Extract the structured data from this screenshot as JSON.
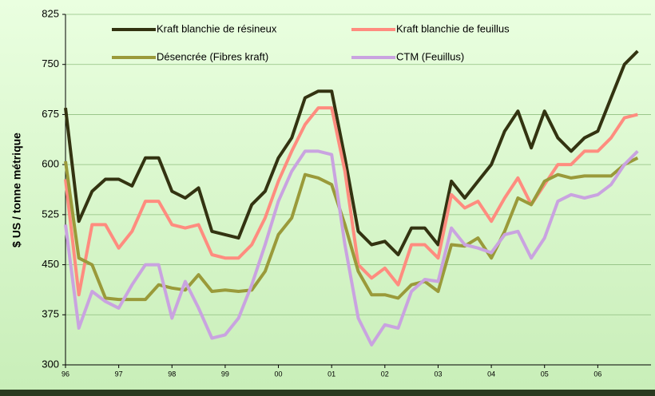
{
  "chart_data": {
    "type": "line",
    "y_label": "$ US / tonne métrique",
    "x": [
      1996,
      1996.25,
      1996.5,
      1996.75,
      1997,
      1997.25,
      1997.5,
      1997.75,
      1998,
      1998.25,
      1998.5,
      1998.75,
      1999,
      1999.25,
      1999.5,
      1999.75,
      2000,
      2000.25,
      2000.5,
      2000.75,
      2001,
      2001.25,
      2001.5,
      2001.75,
      2002,
      2002.25,
      2002.5,
      2002.75,
      2003,
      2003.25,
      2003.5,
      2003.75,
      2004,
      2004.25,
      2004.5,
      2004.75,
      2005,
      2005.25,
      2005.5,
      2005.75,
      2006,
      2006.25,
      2006.5,
      2006.75
    ],
    "series": [
      {
        "name": "Kraft blanchie de résineux",
        "color": "#333311",
        "values": [
          685,
          515,
          560,
          578,
          578,
          568,
          610,
          610,
          560,
          550,
          565,
          500,
          495,
          490,
          540,
          560,
          610,
          640,
          700,
          710,
          710,
          610,
          500,
          480,
          485,
          465,
          505,
          505,
          480,
          575,
          550,
          575,
          600,
          650,
          680,
          625,
          680,
          640,
          620,
          640,
          650,
          700,
          750,
          770
        ]
      },
      {
        "name": "Kraft blanchie de feuillus",
        "color": "#ff8c7f",
        "values": [
          578,
          405,
          510,
          510,
          475,
          500,
          545,
          545,
          510,
          505,
          510,
          465,
          460,
          460,
          480,
          520,
          575,
          620,
          660,
          685,
          685,
          590,
          450,
          430,
          445,
          420,
          480,
          480,
          460,
          555,
          535,
          545,
          515,
          550,
          580,
          540,
          570,
          600,
          600,
          620,
          620,
          640,
          670,
          675
        ]
      },
      {
        "name": "Désencrée (Fibres kraft)",
        "color": "#9a9a3a",
        "values": [
          605,
          460,
          450,
          400,
          398,
          398,
          398,
          420,
          415,
          412,
          435,
          410,
          412,
          410,
          412,
          440,
          495,
          520,
          585,
          580,
          570,
          510,
          440,
          405,
          405,
          400,
          420,
          425,
          410,
          480,
          478,
          490,
          460,
          500,
          550,
          540,
          575,
          585,
          580,
          583,
          583,
          583,
          600,
          610
        ]
      },
      {
        "name": "CTM (Feuillus)",
        "color": "#c9a3e0",
        "values": [
          510,
          355,
          410,
          395,
          385,
          420,
          450,
          450,
          370,
          425,
          385,
          340,
          345,
          370,
          420,
          480,
          545,
          590,
          620,
          620,
          615,
          480,
          370,
          330,
          360,
          355,
          410,
          428,
          425,
          505,
          480,
          475,
          468,
          495,
          500,
          460,
          490,
          545,
          555,
          550,
          555,
          570,
          600,
          620
        ]
      }
    ],
    "xlim": [
      1996,
      2007
    ],
    "xticks": [
      {
        "value": 1996,
        "label": "96"
      },
      {
        "value": 1997,
        "label": "97"
      },
      {
        "value": 1998,
        "label": "98"
      },
      {
        "value": 1999,
        "label": "99"
      },
      {
        "value": 2000,
        "label": "00"
      },
      {
        "value": 2001,
        "label": "01"
      },
      {
        "value": 2002,
        "label": "02"
      },
      {
        "value": 2003,
        "label": "03"
      },
      {
        "value": 2004,
        "label": "04"
      },
      {
        "value": 2005,
        "label": "05"
      },
      {
        "value": 2006,
        "label": "06"
      }
    ],
    "ylim": [
      300,
      825
    ],
    "yticks": [
      300,
      375,
      450,
      525,
      600,
      675,
      750,
      825
    ],
    "grid": true
  }
}
